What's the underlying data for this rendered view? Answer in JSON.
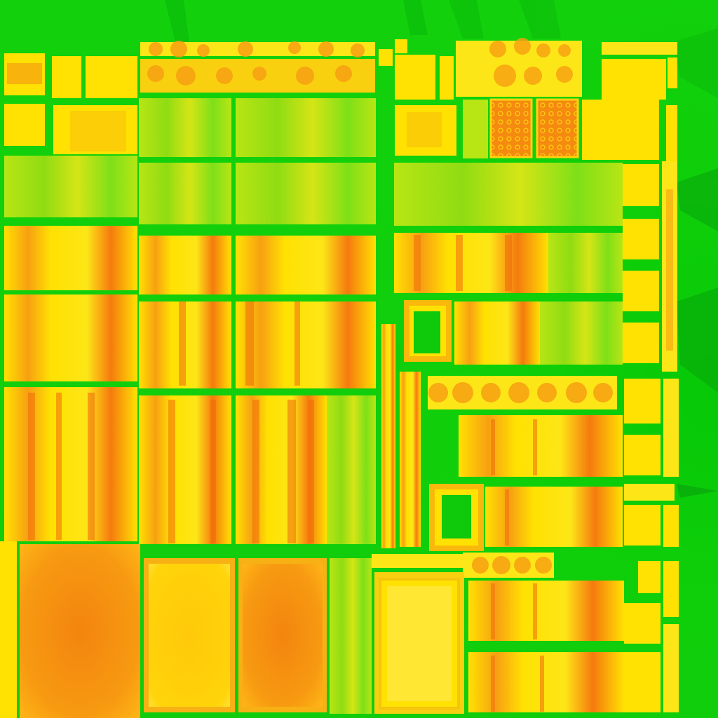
{
  "image": {
    "kind": "texture-atlas-heatmap",
    "description_visible_text": ""
  },
  "palette": {
    "background": "#13c810",
    "green_light": "#7ee018",
    "green_mid": "#3fd80e",
    "lime": "#b8e514",
    "yellow": "#ffe102",
    "yellow_pale": "#fde617",
    "orange": "#f7a012",
    "orange_dark": "#f57a0e",
    "red_orange": "#f06a0c"
  },
  "icons": [
    "ornate-panel-icon",
    "frame-icon",
    "book-spine-icon"
  ]
}
